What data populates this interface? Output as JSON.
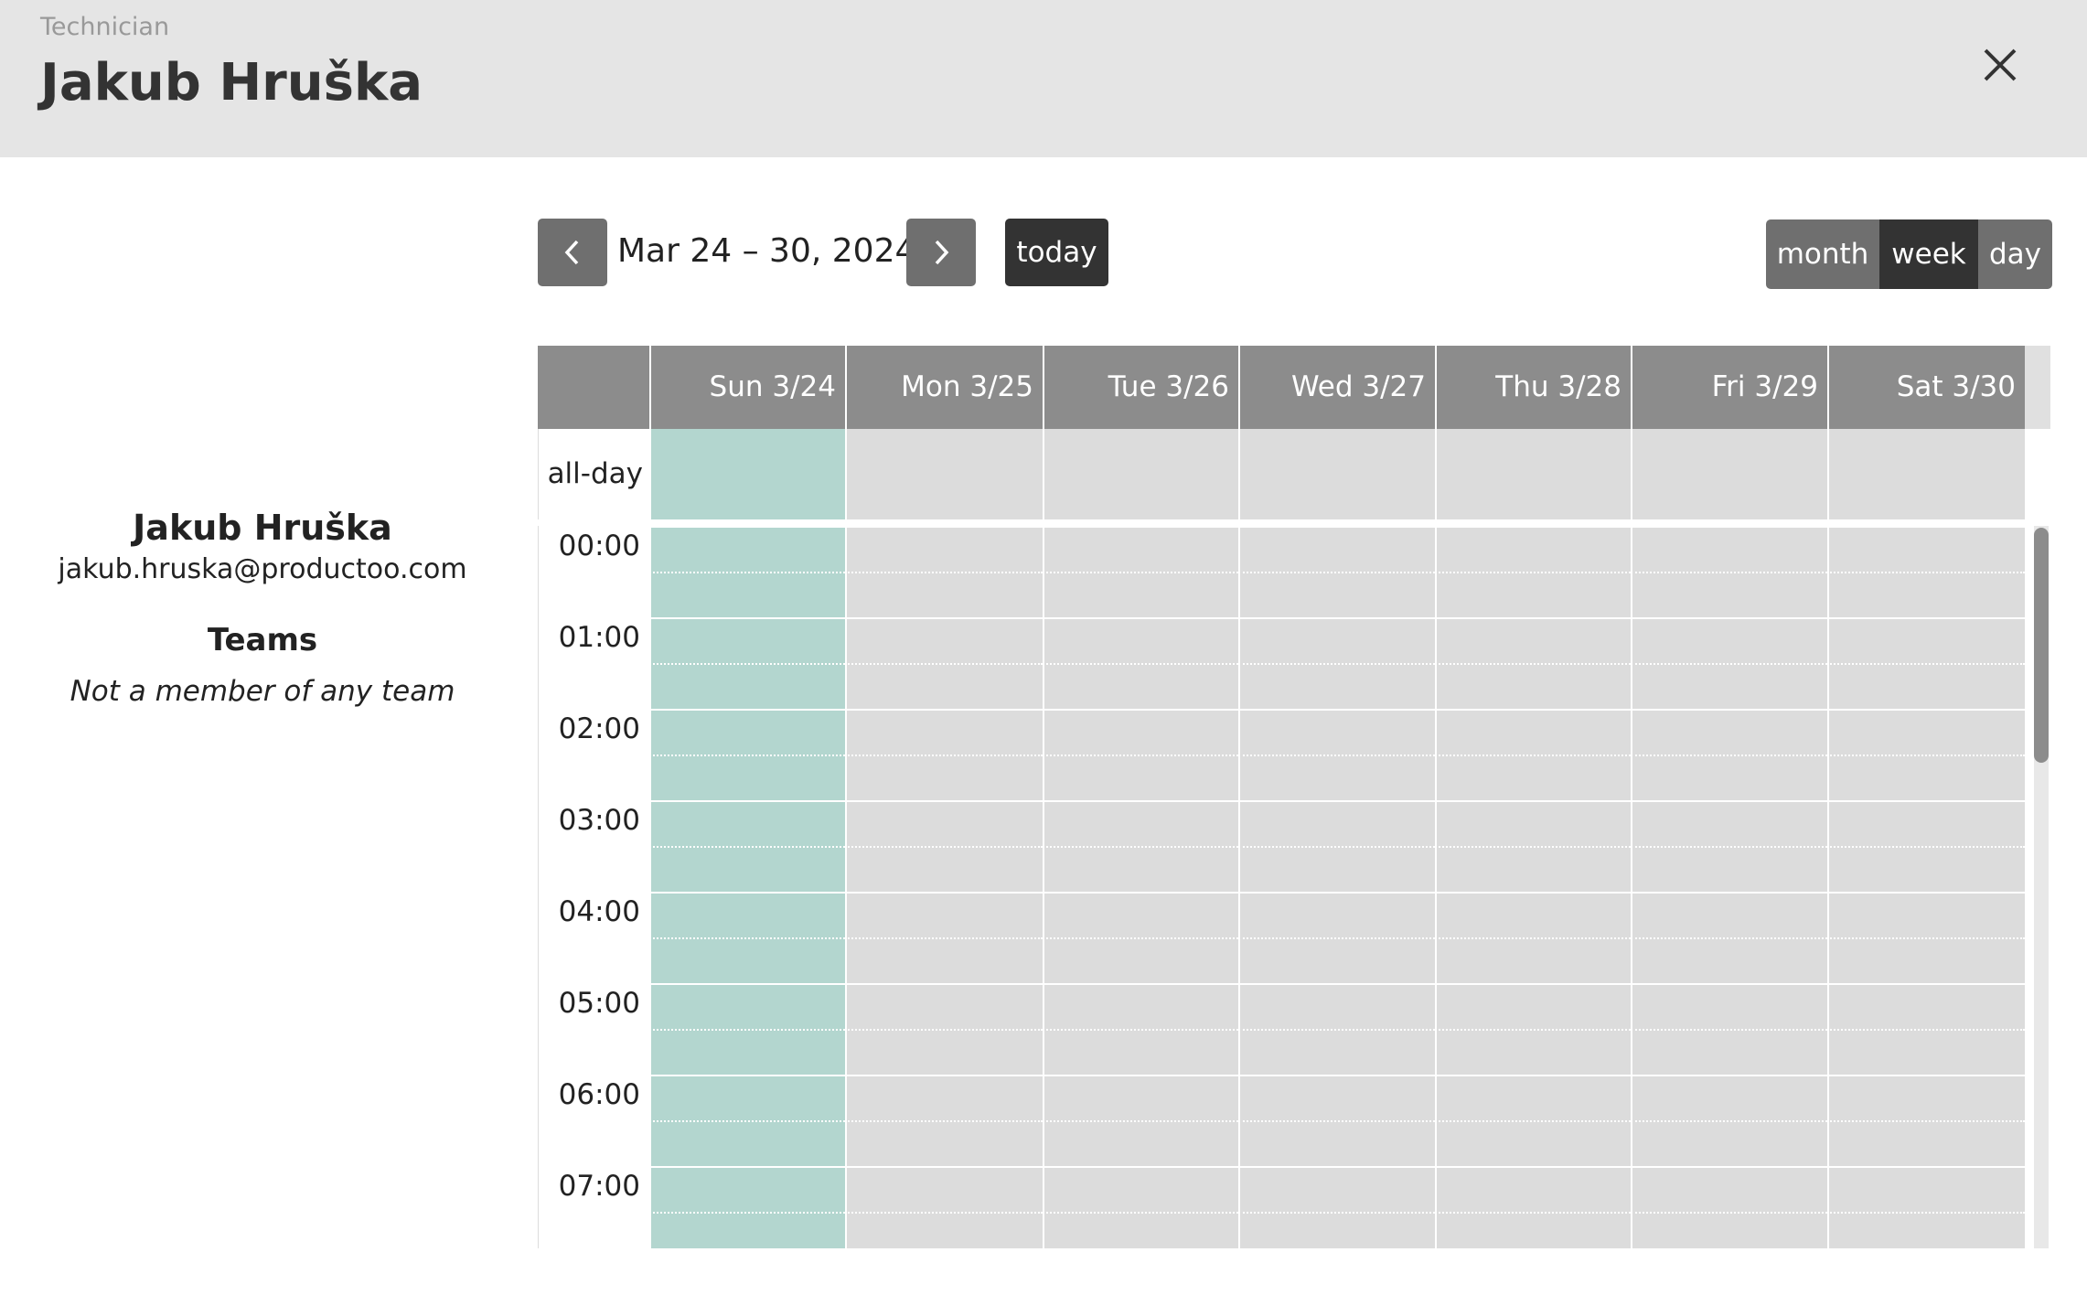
{
  "header": {
    "label": "Technician",
    "title": "Jakub Hruška"
  },
  "profile": {
    "name": "Jakub Hruška",
    "email": "jakub.hruska@productoo.com",
    "teams_heading": "Teams",
    "teams_note": "Not a member of any team"
  },
  "toolbar": {
    "range": "Mar 24 – 30, 2024",
    "today": "today",
    "views": [
      "month",
      "week",
      "day"
    ]
  },
  "calendar": {
    "all_day": "all-day",
    "days": [
      "Sun 3/24",
      "Mon 3/25",
      "Tue 3/26",
      "Wed 3/27",
      "Thu 3/28",
      "Fri 3/29",
      "Sat 3/30"
    ],
    "hours": [
      "00:00",
      "01:00",
      "02:00",
      "03:00",
      "04:00",
      "05:00",
      "06:00",
      "07:00"
    ]
  }
}
